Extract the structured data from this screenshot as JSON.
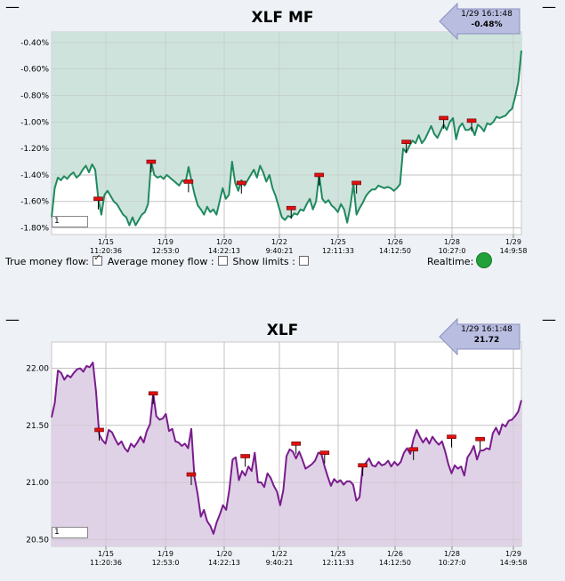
{
  "chart_data": [
    {
      "type": "area",
      "title": "XLF MF",
      "y_unit": "%",
      "ylim": [
        -1.85,
        -0.32
      ],
      "yticks": [
        -0.4,
        -0.6,
        -0.8,
        -1.0,
        -1.2,
        -1.4,
        -1.6,
        -1.8
      ],
      "ytick_labels": [
        "-0.40%",
        "-0.60%",
        "-0.80%",
        "-1.00%",
        "-1.20%",
        "-1.40%",
        "-1.60%",
        "-1.80%"
      ],
      "xticks": [
        {
          "date": "1/15",
          "time": "11:20:36"
        },
        {
          "date": "1/19",
          "time": "12:53:0"
        },
        {
          "date": "1/20",
          "time": "14:22:13"
        },
        {
          "date": "1/22",
          "time": "9:40:21"
        },
        {
          "date": "1/25",
          "time": "12:11:33"
        },
        {
          "date": "1/26",
          "time": "14:12:50"
        },
        {
          "date": "1/28",
          "time": "10:27:0"
        },
        {
          "date": "1/29",
          "time": "14:9:58"
        }
      ],
      "grid": true,
      "colors": {
        "line": "#1f8a5e",
        "fill": "#cfe3dd"
      },
      "series": [
        {
          "values": [
            -1.72,
            -1.5,
            -1.42,
            -1.44,
            -1.41,
            -1.43,
            -1.4,
            -1.38,
            -1.42,
            -1.4,
            -1.36,
            -1.33,
            -1.38,
            -1.32,
            -1.36,
            -1.58,
            -1.7,
            -1.55,
            -1.52,
            -1.56,
            -1.6,
            -1.62,
            -1.66,
            -1.7,
            -1.72,
            -1.78,
            -1.72,
            -1.78,
            -1.74,
            -1.7,
            -1.68,
            -1.62,
            -1.3,
            -1.4,
            -1.42,
            -1.41,
            -1.43,
            -1.4,
            -1.42,
            -1.44,
            -1.46,
            -1.48,
            -1.44,
            -1.46,
            -1.34,
            -1.45,
            -1.55,
            -1.63,
            -1.66,
            -1.7,
            -1.64,
            -1.68,
            -1.66,
            -1.7,
            -1.6,
            -1.5,
            -1.58,
            -1.55,
            -1.3,
            -1.46,
            -1.52,
            -1.44,
            -1.48,
            -1.44,
            -1.4,
            -1.36,
            -1.42,
            -1.33,
            -1.38,
            -1.45,
            -1.4,
            -1.5,
            -1.56,
            -1.64,
            -1.72,
            -1.74,
            -1.71,
            -1.72,
            -1.69,
            -1.7,
            -1.66,
            -1.67,
            -1.62,
            -1.58,
            -1.66,
            -1.6,
            -1.4,
            -1.58,
            -1.61,
            -1.59,
            -1.63,
            -1.65,
            -1.68,
            -1.62,
            -1.66,
            -1.76,
            -1.64,
            -1.47,
            -1.7,
            -1.65,
            -1.61,
            -1.56,
            -1.53,
            -1.51,
            -1.51,
            -1.48,
            -1.49,
            -1.5,
            -1.49,
            -1.5,
            -1.52,
            -1.5,
            -1.47,
            -1.2,
            -1.23,
            -1.18,
            -1.14,
            -1.16,
            -1.1,
            -1.16,
            -1.13,
            -1.08,
            -1.03,
            -1.09,
            -1.12,
            -1.07,
            -1.02,
            -1.06,
            -1.0,
            -0.97,
            -1.13,
            -1.04,
            -1.01,
            -1.06,
            -1.06,
            -1.04,
            -1.1,
            -1.02,
            -1.04,
            -1.07,
            -1.01,
            -1.02,
            -1.0,
            -0.96,
            -0.97,
            -0.96,
            -0.95,
            -0.92,
            -0.9,
            -0.81,
            -0.7,
            -0.46
          ]
        }
      ],
      "markers": [
        {
          "index": 15,
          "value": -1.58
        },
        {
          "index": 32,
          "value": -1.3
        },
        {
          "index": 44,
          "value": -1.45
        },
        {
          "index": 61,
          "value": -1.46
        },
        {
          "index": 77,
          "value": -1.65
        },
        {
          "index": 86,
          "value": -1.4
        },
        {
          "index": 98,
          "value": -1.46
        },
        {
          "index": 114,
          "value": -1.15
        },
        {
          "index": 126,
          "value": -0.97
        },
        {
          "index": 135,
          "value": -0.99
        }
      ]
    },
    {
      "type": "area",
      "title": "XLF",
      "ylim": [
        20.44,
        22.23
      ],
      "yticks": [
        22.0,
        21.5,
        21.0,
        20.5
      ],
      "ytick_labels": [
        "22.00",
        "21.50",
        "21.00",
        "20.50"
      ],
      "xticks": [
        {
          "date": "1/15",
          "time": "11:20:36"
        },
        {
          "date": "1/19",
          "time": "12:53:0"
        },
        {
          "date": "1/20",
          "time": "14:22:13"
        },
        {
          "date": "1/22",
          "time": "9:40:21"
        },
        {
          "date": "1/25",
          "time": "12:11:33"
        },
        {
          "date": "1/26",
          "time": "14:12:50"
        },
        {
          "date": "1/28",
          "time": "10:27:0"
        },
        {
          "date": "1/29",
          "time": "14:9:58"
        }
      ],
      "grid": true,
      "colors": {
        "line": "#7a1c8e",
        "fill": "#e0d2e6"
      },
      "series": [
        {
          "values": [
            21.57,
            21.7,
            21.98,
            21.96,
            21.9,
            21.94,
            21.92,
            21.96,
            21.99,
            22.0,
            21.97,
            22.02,
            22.01,
            22.05,
            21.8,
            21.42,
            21.37,
            21.34,
            21.46,
            21.44,
            21.38,
            21.33,
            21.36,
            21.3,
            21.27,
            21.34,
            21.31,
            21.35,
            21.4,
            21.35,
            21.45,
            21.51,
            21.78,
            21.58,
            21.55,
            21.56,
            21.6,
            21.45,
            21.47,
            21.36,
            21.35,
            21.32,
            21.34,
            21.3,
            21.47,
            21.05,
            20.9,
            20.7,
            20.76,
            20.66,
            20.62,
            20.55,
            20.65,
            20.72,
            20.8,
            20.76,
            20.94,
            21.2,
            21.22,
            21.02,
            21.1,
            21.06,
            21.14,
            21.1,
            21.26,
            21.0,
            21.0,
            20.96,
            21.08,
            21.04,
            20.97,
            20.92,
            20.8,
            20.93,
            21.23,
            21.29,
            21.27,
            21.21,
            21.27,
            21.2,
            21.12,
            21.14,
            21.16,
            21.19,
            21.26,
            21.25,
            21.14,
            21.05,
            20.97,
            21.03,
            21.0,
            21.02,
            20.98,
            21.01,
            21.01,
            20.98,
            20.84,
            20.87,
            21.14,
            21.17,
            21.21,
            21.15,
            21.14,
            21.18,
            21.15,
            21.16,
            21.19,
            21.14,
            21.18,
            21.15,
            21.18,
            21.26,
            21.3,
            21.25,
            21.38,
            21.46,
            21.4,
            21.35,
            21.39,
            21.34,
            21.4,
            21.36,
            21.33,
            21.36,
            21.27,
            21.16,
            21.08,
            21.15,
            21.12,
            21.14,
            21.06,
            21.22,
            21.26,
            21.32,
            21.2,
            21.28,
            21.28,
            21.3,
            21.29,
            21.43,
            21.48,
            21.42,
            21.51,
            21.49,
            21.54,
            21.55,
            21.58,
            21.62,
            21.72
          ]
        }
      ],
      "markers": [
        {
          "index": 15,
          "value": 21.46
        },
        {
          "index": 32,
          "value": 21.78
        },
        {
          "index": 44,
          "value": 21.07
        },
        {
          "index": 61,
          "value": 21.23
        },
        {
          "index": 77,
          "value": 21.34
        },
        {
          "index": 86,
          "value": 21.26
        },
        {
          "index": 98,
          "value": 21.15
        },
        {
          "index": 114,
          "value": 21.29
        },
        {
          "index": 126,
          "value": 21.4
        },
        {
          "index": 135,
          "value": 21.38
        }
      ]
    }
  ],
  "mf_panel": {
    "title": "XLF MF",
    "tooltip_time": "1/29 16:1:48",
    "tooltip_value": "-0.48%",
    "period_value": "1",
    "true_mf_label": "True money flow:",
    "avg_mf_label": "Average money flow :",
    "show_limits_label": "Show limits :",
    "realtime_label": "Realtime:",
    "realtime_color": "#22a03a"
  },
  "price_panel": {
    "title": "XLF",
    "tooltip_time": "1/29 16:1:48",
    "tooltip_value": "21.72",
    "period_value": "1"
  },
  "dash_glyph": "—"
}
